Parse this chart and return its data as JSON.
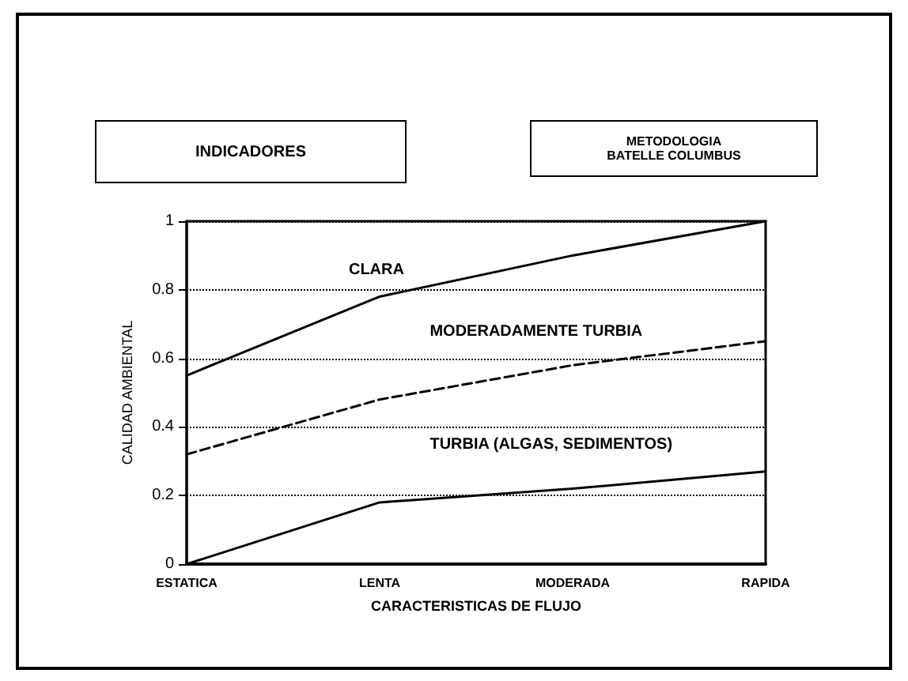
{
  "chart_data": {
    "type": "line",
    "title": "INDICADORES",
    "subtitle": "METODOLOGIA\nBATELLE COLUMBUS",
    "xlabel": "CARACTERISTICAS DE FLUJO",
    "ylabel": "CALIDAD AMBIENTAL",
    "categories": [
      "ESTATICA",
      "LENTA",
      "MODERADA",
      "RAPIDA"
    ],
    "series": [
      {
        "color": "#000000",
        "values": [
          0.55,
          0.78,
          0.9,
          1.0
        ],
        "line_style": "solid"
      },
      {
        "color": "#000000",
        "values": [
          0.32,
          0.48,
          0.58,
          0.65
        ],
        "line_style": "dashed"
      },
      {
        "color": "#000000",
        "values": [
          0,
          0.18,
          0.22,
          0.27
        ],
        "line_style": "solid"
      }
    ],
    "ylim": [
      0,
      1
    ],
    "yticks": [
      0,
      0.2,
      0.4,
      0.6,
      0.8,
      1
    ],
    "grid": "y",
    "marker": "none",
    "annotations": [
      "CLARA",
      "MODERADAMENTE TURBIA",
      "TURBIA (ALGAS, SEDIMENTOS)"
    ]
  }
}
